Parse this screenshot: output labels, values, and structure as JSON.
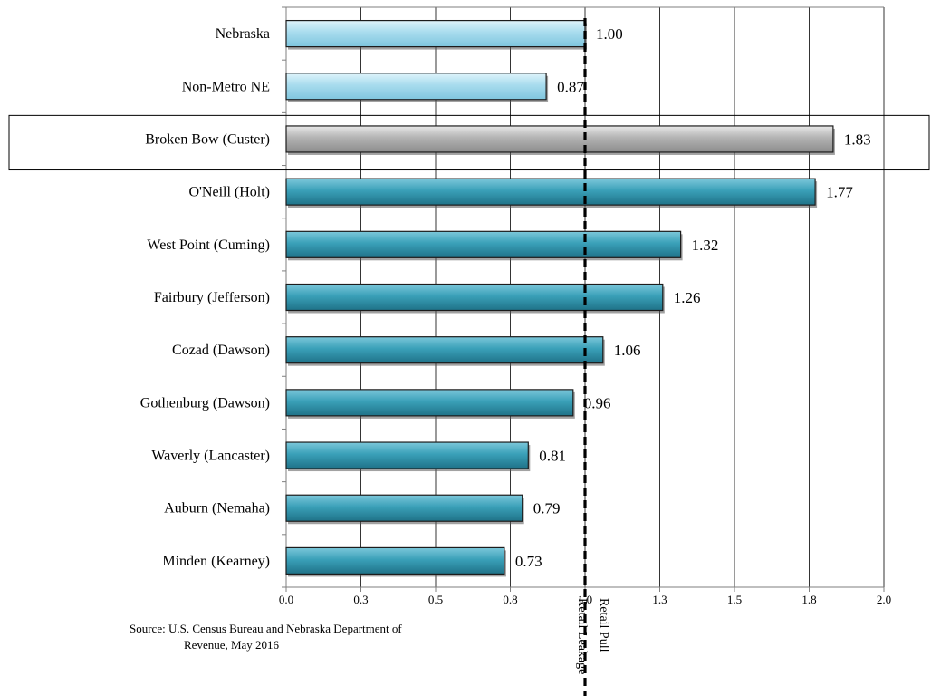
{
  "chart_data": {
    "type": "bar",
    "orientation": "horizontal",
    "categories": [
      "Nebraska",
      "Non-Metro NE",
      "Broken Bow (Custer)",
      "O'Neill (Holt)",
      "West Point (Cuming)",
      "Fairbury (Jefferson)",
      "Cozad (Dawson)",
      "Gothenburg (Dawson)",
      "Waverly (Lancaster)",
      "Auburn (Nemaha)",
      "Minden (Kearney)"
    ],
    "values": [
      1.0,
      0.87,
      1.83,
      1.77,
      1.32,
      1.26,
      1.06,
      0.96,
      0.81,
      0.79,
      0.73
    ],
    "value_labels": [
      "1.00",
      "0.87",
      "1.83",
      "1.77",
      "1.32",
      "1.26",
      "1.06",
      "0.96",
      "0.81",
      "0.79",
      "0.73"
    ],
    "bar_groups": [
      "reference",
      "reference",
      "highlight",
      "peer",
      "peer",
      "peer",
      "peer",
      "peer",
      "peer",
      "peer",
      "peer"
    ],
    "highlight_category": "Broken Bow (Custer)",
    "x_ticks": [
      0.0,
      0.25,
      0.5,
      0.75,
      1.0,
      1.25,
      1.5,
      1.75,
      2.0
    ],
    "x_tick_labels": [
      "0.0",
      "0.3",
      "0.5",
      "0.8",
      "1.0",
      "1.3",
      "1.5",
      "1.8",
      "2.0"
    ],
    "xlim": [
      0,
      2
    ],
    "grid": "vertical",
    "reference_line": {
      "value": 1.0,
      "style": "dashed",
      "label_left": "Retail Leakage",
      "label_right": "Retail Pull"
    },
    "colors": {
      "reference": "#a8dcee",
      "highlight": "#b3b3b3",
      "peer": "#3aa0b8"
    }
  },
  "source": {
    "line1": "Source: U.S. Census Bureau and Nebraska Department of",
    "line2": "Revenue, May 2016"
  }
}
